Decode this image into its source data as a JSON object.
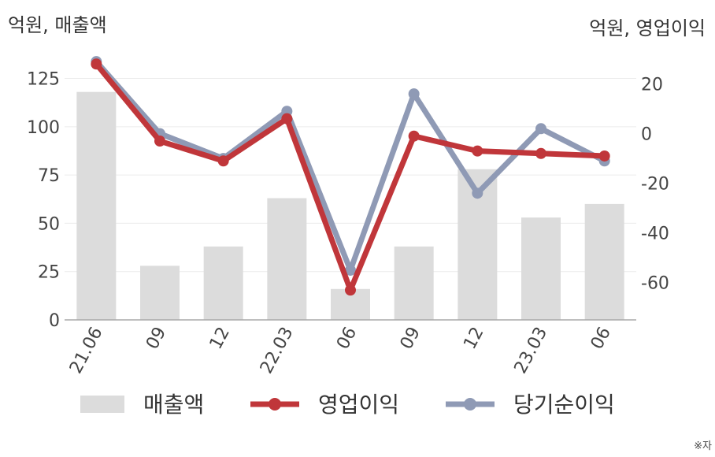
{
  "chart_data": {
    "type": "bar+line",
    "left_axis_unit": "억원, 매출액",
    "right_axis_unit": "억원, 영업이익",
    "categories": [
      "21.06",
      "09",
      "12",
      "22.03",
      "06",
      "09",
      "12",
      "23.03",
      "06"
    ],
    "left_ylim": [
      0,
      135
    ],
    "left_ticks": [
      0,
      25,
      50,
      75,
      100,
      125
    ],
    "right_ylim": [
      -75,
      30
    ],
    "right_ticks": [
      -60,
      -40,
      -20,
      0,
      20
    ],
    "grid": true,
    "legend_position": "bottom",
    "series": [
      {
        "name": "매출액",
        "type": "bar",
        "axis": "left",
        "color": "#dcdcdc",
        "values": [
          118,
          28,
          38,
          63,
          16,
          38,
          78,
          53,
          60
        ]
      },
      {
        "name": "영업이익",
        "type": "line",
        "axis": "right",
        "color": "#c0363a",
        "values": [
          28,
          -3,
          -11,
          6,
          -63,
          -1,
          -7,
          -8,
          -9
        ]
      },
      {
        "name": "당기순이익",
        "type": "line",
        "axis": "right",
        "color": "#8f9ab5",
        "values": [
          29,
          0,
          -10,
          9,
          -55,
          16,
          -24,
          2,
          -11
        ]
      }
    ]
  },
  "note": "※자"
}
